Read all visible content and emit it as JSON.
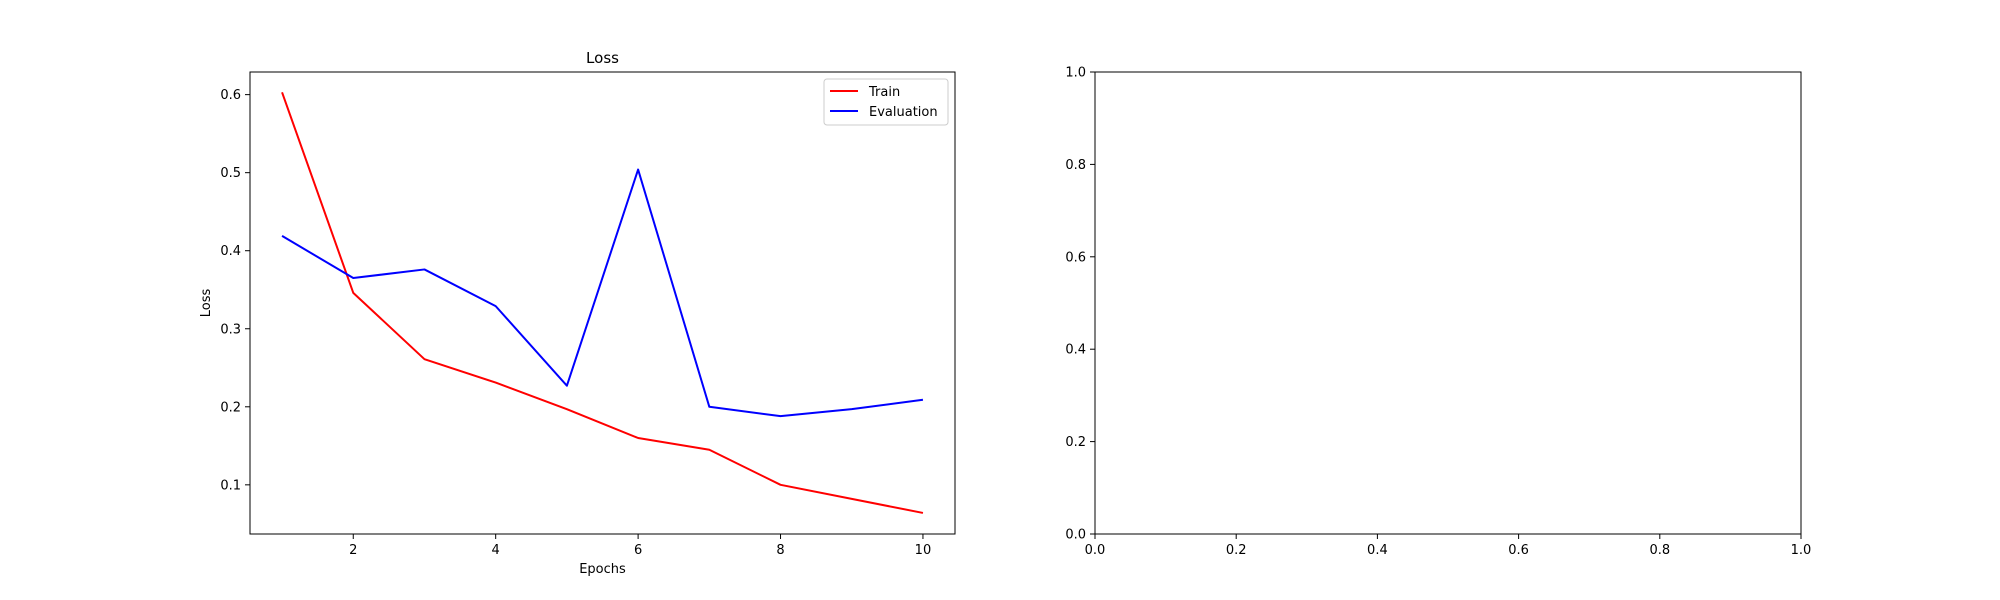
{
  "chart_data": [
    {
      "type": "line",
      "title": "Loss",
      "xlabel": "Epochs",
      "ylabel": "Loss",
      "x": [
        1,
        2,
        3,
        4,
        5,
        6,
        7,
        8,
        9,
        10
      ],
      "xlim": [
        0.55,
        10.45
      ],
      "ylim": [
        0.037,
        0.629
      ],
      "xticks": [
        2,
        4,
        6,
        8,
        10
      ],
      "yticks": [
        0.1,
        0.2,
        0.3,
        0.4,
        0.5,
        0.6
      ],
      "grid": false,
      "legend_position": "top-right",
      "series": [
        {
          "name": "Train",
          "color": "#ff0000",
          "values": [
            0.603,
            0.346,
            0.261,
            0.231,
            0.197,
            0.16,
            0.145,
            0.1,
            0.082,
            0.064
          ]
        },
        {
          "name": "Evaluation",
          "color": "#0000ff",
          "values": [
            0.419,
            0.365,
            0.376,
            0.329,
            0.227,
            0.504,
            0.2,
            0.188,
            0.197,
            0.209
          ]
        }
      ]
    },
    {
      "type": "line",
      "title": "",
      "xlabel": "",
      "ylabel": "",
      "xlim": [
        0.0,
        1.0
      ],
      "ylim": [
        0.0,
        1.0
      ],
      "xticks": [
        0.0,
        0.2,
        0.4,
        0.6,
        0.8,
        1.0
      ],
      "yticks": [
        0.0,
        0.2,
        0.4,
        0.6,
        0.8,
        1.0
      ],
      "grid": false,
      "series": []
    }
  ]
}
